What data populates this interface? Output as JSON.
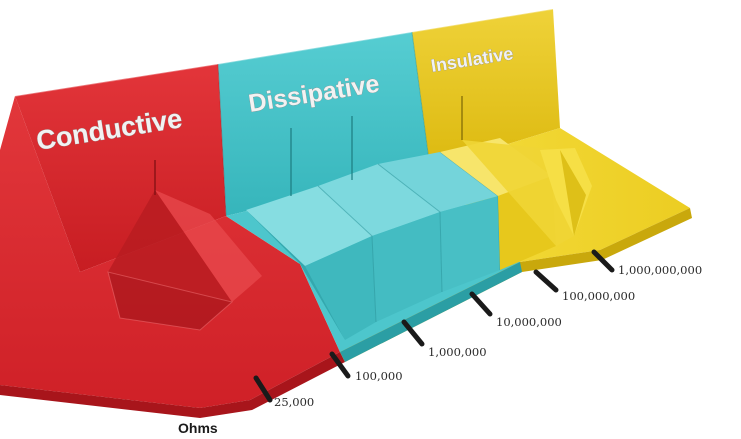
{
  "diagram": {
    "zones": [
      {
        "name": "conductive",
        "label": "Conductive",
        "color": "#d9232a"
      },
      {
        "name": "dissipative",
        "label": "Dissipative",
        "color": "#3fc0c6"
      },
      {
        "name": "insulative",
        "label": "Insulative",
        "color": "#e6c61c"
      }
    ],
    "ticks": [
      "25,000",
      "100,000",
      "1,000,000",
      "10,000,000",
      "100,000,000",
      "1,000,000,000"
    ],
    "unit": "Ohms"
  }
}
